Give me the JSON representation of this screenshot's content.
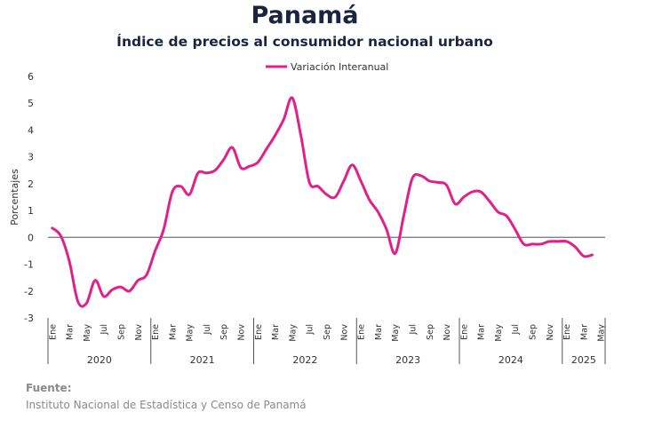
{
  "chart_data": {
    "type": "line",
    "title": "Panamá",
    "subtitle": "Índice de precios al consumidor nacional urbano",
    "ylabel": "Porcentajes",
    "xlabel": "",
    "ylim": [
      -3,
      6
    ],
    "yticks": [
      -3,
      -2,
      -1,
      0,
      1,
      2,
      3,
      4,
      5,
      6
    ],
    "legend_position": "top-center",
    "line_color": "#e0218a",
    "zero_line_color": "#808080",
    "month_ticks": [
      "Ene",
      "Mar",
      "May",
      "Jul",
      "Sep",
      "Nov",
      "Ene",
      "Mar",
      "May",
      "Jul",
      "Sep",
      "Nov",
      "Ene",
      "Mar",
      "May",
      "Jul",
      "Sep",
      "Nov",
      "Ene",
      "Mar",
      "May",
      "Jul",
      "Sep",
      "Nov",
      "Ene",
      "Mar",
      "May",
      "Jul",
      "Sep",
      "Nov",
      "Ene",
      "Mar",
      "May"
    ],
    "year_groups": [
      {
        "label": "2020",
        "months": 12
      },
      {
        "label": "2021",
        "months": 12
      },
      {
        "label": "2022",
        "months": 12
      },
      {
        "label": "2023",
        "months": 12
      },
      {
        "label": "2024",
        "months": 12
      },
      {
        "label": "2025",
        "months": 5
      }
    ],
    "series": [
      {
        "name": "Variación Interanual",
        "values": [
          0.35,
          0.05,
          -0.9,
          -2.4,
          -2.45,
          -1.6,
          -2.2,
          -1.95,
          -1.85,
          -2.0,
          -1.6,
          -1.4,
          -0.5,
          0.3,
          1.7,
          1.9,
          1.6,
          2.4,
          2.4,
          2.5,
          2.9,
          3.35,
          2.6,
          2.65,
          2.8,
          3.3,
          3.8,
          4.4,
          5.2,
          3.8,
          2.05,
          1.9,
          1.6,
          1.5,
          2.1,
          2.7,
          2.1,
          1.4,
          0.95,
          0.3,
          -0.6,
          0.8,
          2.2,
          2.3,
          2.1,
          2.05,
          1.95,
          1.25,
          1.5,
          1.7,
          1.7,
          1.35,
          0.95,
          0.8,
          0.3,
          -0.25,
          -0.25,
          -0.25,
          -0.15,
          -0.15,
          -0.15,
          -0.35,
          -0.7,
          -0.65
        ]
      }
    ]
  },
  "source": {
    "label": "Fuente:",
    "text": "Instituto Nacional de Estadística y Censo de Panamá"
  }
}
